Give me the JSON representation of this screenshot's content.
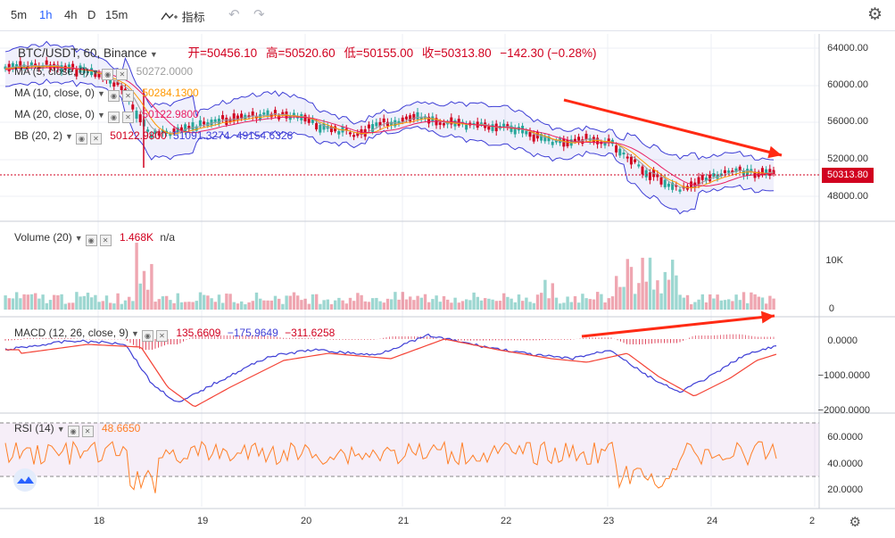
{
  "toolbar": {
    "intervals": [
      "5m",
      "1h",
      "4h",
      "D",
      "15m"
    ],
    "active_interval": "1h",
    "indicators_label": "指标",
    "icons": [
      "indicators-icon",
      "undo-icon",
      "redo-icon",
      "settings-icon"
    ]
  },
  "symbol": {
    "title": "BTC/USDT, 60, Binance",
    "open": "开=50456.10",
    "high": "高=50520.60",
    "low": "低=50155.00",
    "close": "收=50313.80",
    "change": "−142.30 (−0.28%)"
  },
  "main_legend": [
    {
      "label": "MA (5, close, 0)",
      "value": "50272.0000",
      "color": "#9e9e9e"
    },
    {
      "label": "MA (10, close, 0)",
      "value": "50284.1300",
      "color": "#ff9800"
    },
    {
      "label": "MA (20, close, 0)",
      "value": "50122.9800",
      "color": "#e91e63"
    },
    {
      "label": "BB (20, 2)",
      "value": "50122.9800",
      "value2": "51091.3274",
      "value3": "49154.6326",
      "color": "#d1001f",
      "color2": "#3f3fd6"
    }
  ],
  "price_axis": [
    "64000.00",
    "60000.00",
    "56000.00",
    "52000.00",
    "48000.00"
  ],
  "last_price": "50313.80",
  "volume": {
    "label": "Volume (20)",
    "value": "1.468K",
    "extra": "n/a",
    "axis": [
      "10K",
      "0"
    ]
  },
  "macd": {
    "label": "MACD (12, 26, close, 9)",
    "v1": "135.6609",
    "v2": "−175.9649",
    "v3": "−311.6258",
    "axis": [
      "0.0000",
      "−1000.0000",
      "−2000.0000"
    ]
  },
  "rsi": {
    "label": "RSI (14)",
    "value": "48.6650",
    "axis": [
      "60.0000",
      "40.0000",
      "20.0000"
    ]
  },
  "time_axis": [
    "18",
    "19",
    "20",
    "21",
    "22",
    "23",
    "24",
    "2"
  ],
  "colors": {
    "up": "#26a69a",
    "down": "#d1001f",
    "bb_band": "#3f3fd6",
    "rsi": "#ff7f27",
    "arrow": "#ff2a14"
  }
}
